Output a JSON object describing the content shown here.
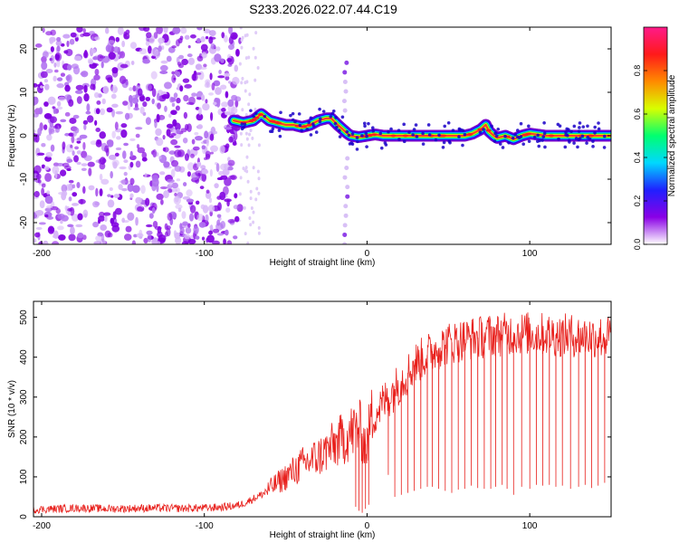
{
  "figure": {
    "title": "S233.2026.022.07.44.C19"
  },
  "colors": {
    "ridge_path": [
      "#7a00cc",
      "#2200ff",
      "#00cfff",
      "#00dd55",
      "#c8ff00",
      "#ff3b2b"
    ],
    "snr_line": "#e8201c",
    "colorbar": [
      "#ffffff",
      "#8a00e6",
      "#2020ff",
      "#00d8ff",
      "#00ff70",
      "#d8ff00",
      "#ff8a00",
      "#ff1a1a",
      "#ff1a8a"
    ]
  },
  "chart_data": [
    {
      "type": "heatmap",
      "title": "",
      "xlabel": "Height of straight line (km)",
      "ylabel": "Frequency (Hz)",
      "xlim": [
        -205,
        150
      ],
      "ylim": [
        -25,
        25
      ],
      "xticks": [
        -200,
        -100,
        0,
        100
      ],
      "xtick_labels": [
        "-200",
        "-100",
        "0",
        "100"
      ],
      "yticks": [
        -20,
        -10,
        0,
        10,
        20
      ],
      "ytick_labels": [
        "-20",
        "-10",
        "0",
        "10",
        "20"
      ],
      "colorbar": {
        "label": "Normalized spectral amplitude",
        "range": [
          0,
          1
        ],
        "ticks": [
          0,
          0.2,
          0.4,
          0.6,
          0.8
        ],
        "tick_labels": [
          "0.0",
          "0.2",
          "0.4",
          "0.6",
          "0.8"
        ]
      },
      "noise_region": {
        "x": [
          -205,
          -78
        ],
        "value_range": [
          0.0,
          0.15
        ]
      },
      "ridge": {
        "description_values": "peak frequency (Hz) along height (km)",
        "x": [
          -82,
          -76,
          -70,
          -65,
          -60,
          -55,
          -50,
          -45,
          -40,
          -35,
          -30,
          -25,
          -22,
          -18,
          -15,
          -12,
          -10,
          -5,
          0,
          5,
          10,
          20,
          30,
          40,
          50,
          60,
          65,
          70,
          73,
          75,
          78,
          80,
          85,
          90,
          95,
          100,
          110,
          120,
          130,
          140,
          150
        ],
        "y": [
          3.5,
          3,
          3.5,
          5,
          3.5,
          3,
          2.5,
          2.5,
          2,
          2.5,
          3.5,
          4,
          4,
          2.5,
          1.5,
          0.5,
          0,
          -0.3,
          0,
          0.3,
          0,
          0,
          0,
          0,
          0,
          0,
          0.5,
          1.5,
          2.5,
          1,
          0,
          -0.5,
          0,
          -0.8,
          0,
          0.5,
          0,
          0,
          0,
          0,
          0
        ],
        "peak_amplitude": 0.9
      },
      "vertical_streak": {
        "x": -13,
        "y_range": [
          -25,
          18
        ]
      }
    },
    {
      "type": "line",
      "title": "",
      "xlabel": "Height of straight line (km)",
      "ylabel": "SNR (10 * v/v)",
      "xlim": [
        -205,
        150
      ],
      "ylim": [
        0,
        540
      ],
      "xticks": [
        -200,
        -100,
        0,
        100
      ],
      "xtick_labels": [
        "-200",
        "-100",
        "0",
        "100"
      ],
      "yticks": [
        0,
        100,
        200,
        300,
        400,
        500
      ],
      "ytick_labels": [
        "0",
        "100",
        "200",
        "300",
        "400",
        "500"
      ],
      "grid": false,
      "series": [
        {
          "x": [
            -205,
            -190,
            -175,
            -160,
            -145,
            -130,
            -115,
            -100,
            -90,
            -80,
            -75,
            -70,
            -65,
            -60,
            -55,
            -50,
            -45,
            -40,
            -35,
            -30,
            -25,
            -20,
            -15,
            -10,
            -5,
            -2,
            0,
            2,
            5,
            10,
            15,
            20,
            25,
            30,
            35,
            40,
            45,
            50,
            55,
            60,
            65,
            70,
            75,
            80,
            85,
            90,
            95,
            100,
            105,
            110,
            115,
            120,
            125,
            130,
            135,
            140,
            145,
            150
          ],
          "y": [
            18,
            20,
            22,
            20,
            21,
            22,
            21,
            22,
            24,
            28,
            35,
            45,
            55,
            70,
            85,
            100,
            115,
            130,
            140,
            150,
            165,
            180,
            195,
            210,
            225,
            190,
            175,
            240,
            260,
            285,
            310,
            335,
            360,
            385,
            400,
            415,
            425,
            435,
            440,
            445,
            448,
            450,
            455,
            455,
            458,
            460,
            460,
            460,
            458,
            458,
            456,
            455,
            455,
            453,
            452,
            452,
            450,
            450
          ]
        }
      ],
      "dropouts": {
        "x": [
          -7,
          -5,
          -3,
          -1,
          1,
          13,
          17,
          21,
          25,
          29,
          33,
          37,
          40,
          44,
          48,
          52,
          56,
          60,
          64,
          68,
          72,
          76,
          79,
          83,
          86,
          90,
          95,
          100,
          104,
          108,
          112,
          116,
          120,
          125,
          130,
          134,
          138,
          142,
          146
        ],
        "y": [
          25,
          15,
          10,
          20,
          30,
          105,
          50,
          55,
          60,
          65,
          70,
          75,
          75,
          70,
          65,
          60,
          68,
          70,
          78,
          72,
          70,
          70,
          75,
          80,
          70,
          55,
          75,
          70,
          80,
          78,
          80,
          75,
          78,
          70,
          75,
          80,
          72,
          78,
          85
        ]
      }
    }
  ]
}
